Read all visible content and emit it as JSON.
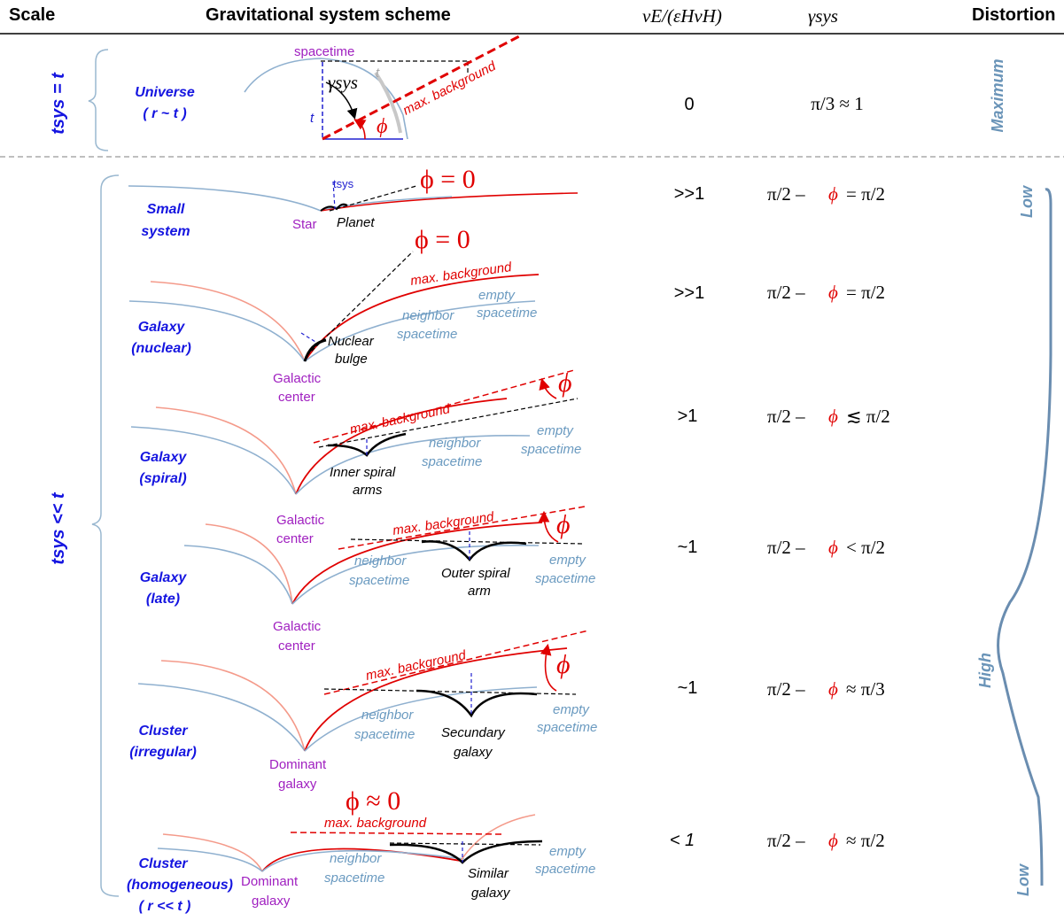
{
  "headers": {
    "scale": "Scale",
    "scheme": "Gravitational system scheme",
    "ratio": "vE/(εHvH)",
    "gamma": "γsys",
    "distortion": "Distortion"
  },
  "scale_labels": {
    "top": "tsys = t",
    "bottom": "tsys << t"
  },
  "rows": [
    {
      "name_line1": "Universe",
      "name_line2": "( r ~ t )",
      "ratio": "0",
      "formula": "π/3 ≈ 1",
      "distortion": "Maximum"
    },
    {
      "name_line1": "Small",
      "name_line2": "system",
      "ratio": ">>1",
      "formula_left": "π/2 –",
      "formula_phi": "ϕ",
      "formula_right": "= π/2"
    },
    {
      "name_line1": "Galaxy",
      "name_line2": "(nuclear)",
      "ratio": ">>1",
      "formula_left": "π/2 –",
      "formula_phi": "ϕ",
      "formula_right": "= π/2"
    },
    {
      "name_line1": "Galaxy",
      "name_line2": "(spiral)",
      "ratio": ">1",
      "formula_left": "π/2 –",
      "formula_phi": "ϕ",
      "formula_right": "≲ π/2"
    },
    {
      "name_line1": "Galaxy",
      "name_line2": "(late)",
      "ratio": "~1",
      "formula_left": "π/2 –",
      "formula_phi": "ϕ",
      "formula_right": "< π/2"
    },
    {
      "name_line1": "Cluster",
      "name_line2": "(irregular)",
      "ratio": "~1",
      "formula_left": "π/2 –",
      "formula_phi": "ϕ",
      "formula_right": "≈ π/3"
    },
    {
      "name_line1": "Cluster",
      "name_line2": "(homogeneous)",
      "name_line3": "( r << t )",
      "ratio": "< 1",
      "formula_left": "π/2 –",
      "formula_phi": "ϕ",
      "formula_right": "≈ π/2"
    }
  ],
  "distortion_labels": {
    "low_top": "Low",
    "high": "High",
    "low_bottom": "Low"
  },
  "scheme_labels": {
    "spacetime": "spacetime",
    "t": "t",
    "gamma_sys": "γsys",
    "phi": "ϕ",
    "max_background": "max. background",
    "max_background_spaced": "max.  background",
    "tsys": "tsys",
    "phi_eq_zero": "ϕ  = 0",
    "phi_approx_zero": "ϕ  ≈ 0",
    "star": "Star",
    "planet": "Planet",
    "empty_spacetime_1": "empty",
    "empty_spacetime_2": "spacetime",
    "neighbor_spacetime_1": "neighbor",
    "neighbor_spacetime_2": "spacetime",
    "nuclear_bulge_1": "Nuclear",
    "nuclear_bulge_2": "bulge",
    "galactic_center_1": "Galactic",
    "galactic_center_2": "center",
    "inner_arms_1": "Inner spiral",
    "inner_arms_2": "arms",
    "outer_arm_1": "Outer spiral",
    "outer_arm_2": "arm",
    "dominant_galaxy_1": "Dominant",
    "dominant_galaxy_2": "galaxy",
    "secundary_galaxy_1": "Secundary",
    "secundary_galaxy_2": "galaxy",
    "similar_galaxy_1": "Similar",
    "similar_galaxy_2": "galaxy"
  }
}
